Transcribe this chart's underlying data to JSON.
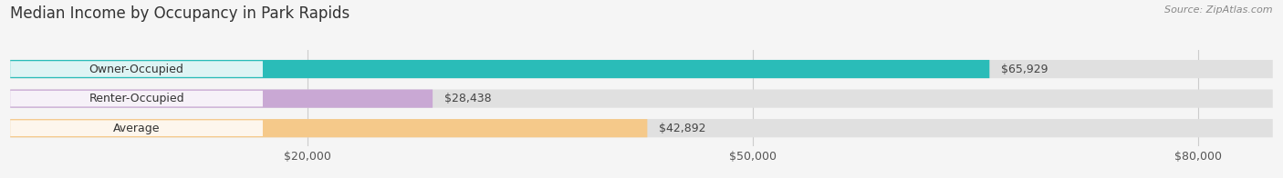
{
  "title": "Median Income by Occupancy in Park Rapids",
  "source": "Source: ZipAtlas.com",
  "categories": [
    "Owner-Occupied",
    "Renter-Occupied",
    "Average"
  ],
  "values": [
    65929,
    28438,
    42892
  ],
  "bar_colors": [
    "#2abcb8",
    "#c9a8d4",
    "#f5c98a"
  ],
  "value_labels": [
    "$65,929",
    "$28,438",
    "$42,892"
  ],
  "xlim": [
    0,
    85000
  ],
  "xticks": [
    20000,
    50000,
    80000
  ],
  "xticklabels": [
    "$20,000",
    "$50,000",
    "$80,000"
  ],
  "bar_height": 0.62,
  "background_color": "#f5f5f5",
  "bar_bg_color": "#e0e0e0",
  "title_fontsize": 12,
  "source_fontsize": 8,
  "label_fontsize": 9,
  "value_fontsize": 9,
  "tick_fontsize": 9
}
